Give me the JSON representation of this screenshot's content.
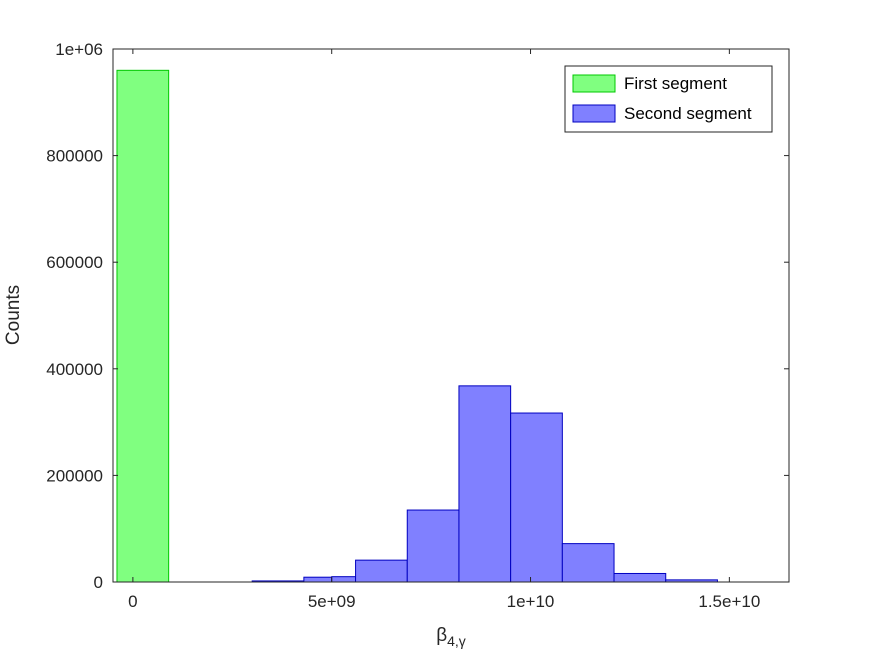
{
  "chart_data": {
    "type": "bar",
    "xlabel": "β",
    "xlabel_sub": "4,γ",
    "ylabel": "Counts",
    "xlim": [
      -500000000,
      16500000000
    ],
    "ylim": [
      0,
      1000000
    ],
    "x_ticks": [
      0,
      5000000000,
      10000000000,
      15000000000
    ],
    "x_tick_labels": [
      "0",
      "5e+09",
      "1e+10",
      "1.5e+10"
    ],
    "y_ticks": [
      0,
      200000,
      400000,
      600000,
      800000,
      1000000
    ],
    "y_tick_labels": [
      "0",
      "200000",
      "400000",
      "600000",
      "800000",
      "1e+06"
    ],
    "legend_position": "top-right",
    "series": [
      {
        "name": "First segment",
        "color": "#80ff80",
        "edge_color": "#00c800",
        "bins": [
          {
            "x0": -400000000,
            "x1": 900000000,
            "count": 960000
          }
        ]
      },
      {
        "name": "Second segment",
        "color": "#8080ff",
        "edge_color": "#0000c0",
        "bins": [
          {
            "x0": 3000000000,
            "x1": 4300000000,
            "count": 2000
          },
          {
            "x0": 4300000000,
            "x1": 5000000000,
            "count": 9000
          },
          {
            "x0": 5000000000,
            "x1": 5600000000,
            "count": 10000
          },
          {
            "x0": 5600000000,
            "x1": 6900000000,
            "count": 41000
          },
          {
            "x0": 6900000000,
            "x1": 8200000000,
            "count": 135000
          },
          {
            "x0": 8200000000,
            "x1": 9500000000,
            "count": 368000
          },
          {
            "x0": 9500000000,
            "x1": 10800000000,
            "count": 317000
          },
          {
            "x0": 10800000000,
            "x1": 12100000000,
            "count": 72000
          },
          {
            "x0": 12100000000,
            "x1": 13400000000,
            "count": 16000
          },
          {
            "x0": 13400000000,
            "x1": 14700000000,
            "count": 4000
          }
        ]
      }
    ]
  }
}
